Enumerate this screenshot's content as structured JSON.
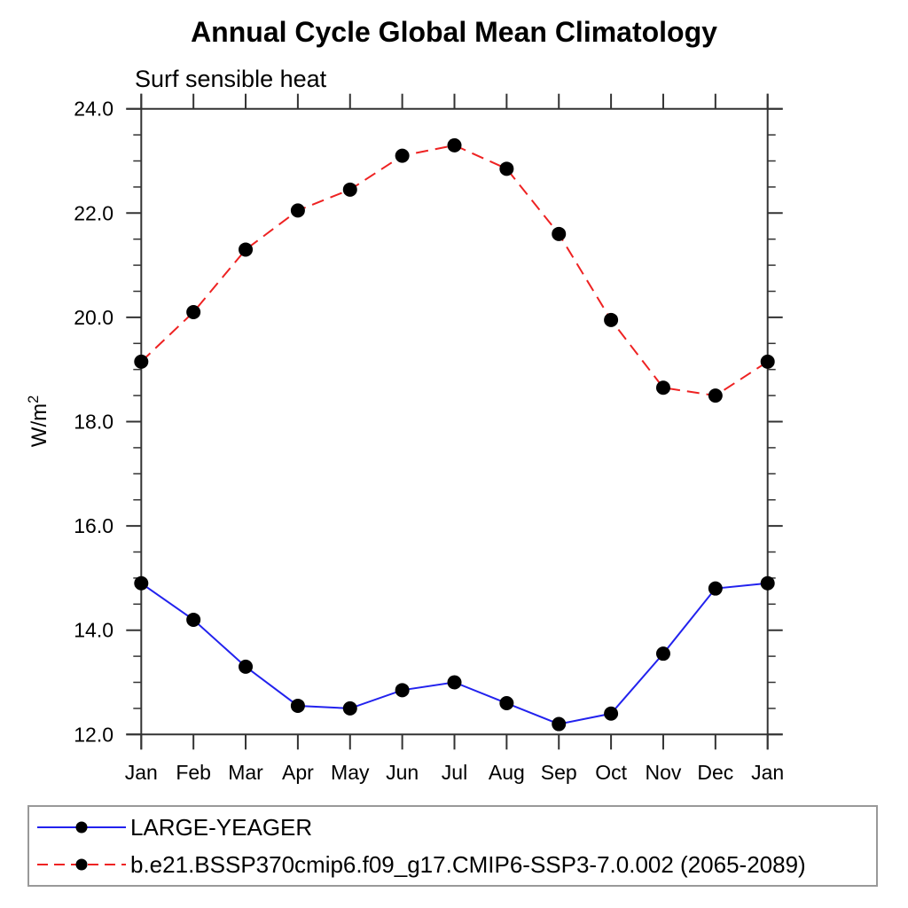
{
  "chart_data": {
    "type": "line",
    "title": "Annual Cycle Global Mean Climatology",
    "subtitle": "Surf sensible heat",
    "ylabel_base": "W/m",
    "ylabel_exponent": "2",
    "categories": [
      "Jan",
      "Feb",
      "Mar",
      "Apr",
      "May",
      "Jun",
      "Jul",
      "Aug",
      "Sep",
      "Oct",
      "Nov",
      "Dec",
      "Jan"
    ],
    "ylim": [
      12.0,
      24.0
    ],
    "y_major_step": 2.0,
    "y_minor_step": 0.5,
    "y_tick_labels": [
      "12.0",
      "14.0",
      "16.0",
      "18.0",
      "20.0",
      "22.0",
      "24.0"
    ],
    "grid": false,
    "legend_position": "bottom",
    "series": [
      {
        "name": "LARGE-YEAGER",
        "color": "#2222ee",
        "line_style": "solid",
        "marker": "filled-circle",
        "marker_color": "#000000",
        "values": [
          14.9,
          14.2,
          13.3,
          12.55,
          12.5,
          12.85,
          13.0,
          12.6,
          12.2,
          12.4,
          13.55,
          14.8,
          14.9
        ]
      },
      {
        "name": "b.e21.BSSP370cmip6.f09_g17.CMIP6-SSP3-7.0.002 (2065-2089)",
        "color": "#ee2222",
        "line_style": "dashed",
        "marker": "filled-circle",
        "marker_color": "#000000",
        "values": [
          19.15,
          20.1,
          21.3,
          22.05,
          22.45,
          23.1,
          23.3,
          22.85,
          21.6,
          19.95,
          18.65,
          18.5,
          19.15
        ]
      }
    ]
  },
  "colors": {
    "axis": "#333333",
    "tick_text": "#000000",
    "legend_border": "#999999",
    "background": "#ffffff"
  }
}
